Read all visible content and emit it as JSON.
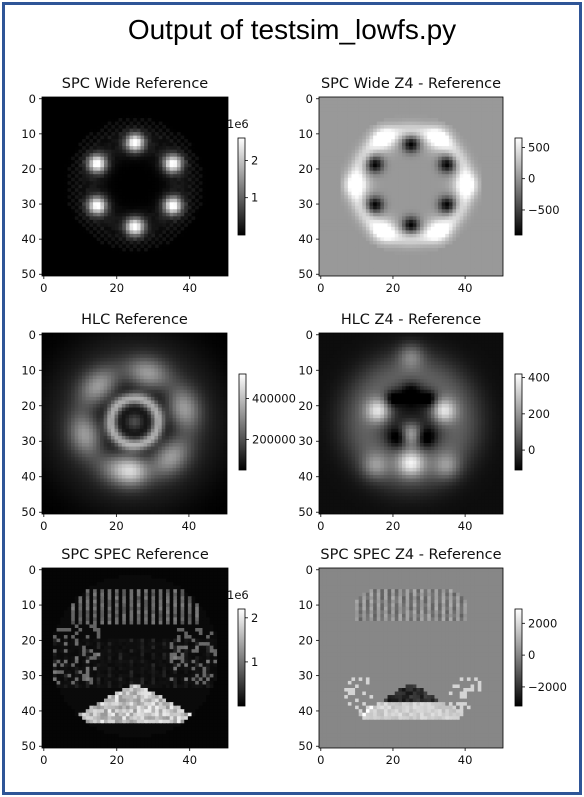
{
  "page": {
    "title": "Output of testsim_lowfs.py"
  },
  "colors": {
    "frame": "#2f5597"
  },
  "chart_data": [
    {
      "type": "heatmap",
      "title": "SPC Wide Reference",
      "pattern": "spc_wide_ref",
      "x_ticks": [
        "0",
        "20",
        "40"
      ],
      "y_ticks": [
        "0",
        "10",
        "20",
        "30",
        "40",
        "50"
      ],
      "xlim": [
        0,
        51
      ],
      "ylim": [
        51,
        0
      ],
      "grid": false,
      "colormap": "gray",
      "colorbar": {
        "ticks": [
          "1",
          "2"
        ],
        "offset_label": "1e6",
        "range": [
          0,
          2.6
        ]
      }
    },
    {
      "type": "heatmap",
      "title": "SPC Wide Z4 - Reference",
      "pattern": "spc_wide_diff",
      "x_ticks": [
        "0",
        "20",
        "40"
      ],
      "y_ticks": [
        "0",
        "10",
        "20",
        "30",
        "40",
        "50"
      ],
      "xlim": [
        0,
        51
      ],
      "ylim": [
        51,
        0
      ],
      "grid": false,
      "colormap": "gray",
      "colorbar": {
        "ticks": [
          "500",
          "0",
          "−500"
        ],
        "offset_label": "",
        "range": [
          -900,
          650
        ]
      }
    },
    {
      "type": "heatmap",
      "title": "HLC Reference",
      "pattern": "hlc_ref",
      "x_ticks": [
        "0",
        "20",
        "40"
      ],
      "y_ticks": [
        "0",
        "10",
        "20",
        "30",
        "40",
        "50"
      ],
      "xlim": [
        0,
        51
      ],
      "ylim": [
        51,
        0
      ],
      "grid": false,
      "colormap": "gray",
      "colorbar": {
        "ticks": [
          "400000",
          "200000"
        ],
        "offset_label": "",
        "range": [
          50000,
          520000
        ]
      }
    },
    {
      "type": "heatmap",
      "title": "HLC Z4 - Reference",
      "pattern": "hlc_diff",
      "x_ticks": [
        "0",
        "20",
        "40"
      ],
      "y_ticks": [
        "0",
        "10",
        "20",
        "30",
        "40",
        "50"
      ],
      "xlim": [
        0,
        51
      ],
      "ylim": [
        51,
        0
      ],
      "grid": false,
      "colormap": "gray",
      "colorbar": {
        "ticks": [
          "400",
          "200",
          "0"
        ],
        "offset_label": "",
        "range": [
          -110,
          420
        ]
      }
    },
    {
      "type": "heatmap",
      "title": "SPC SPEC Reference",
      "pattern": "spc_spec_ref",
      "x_ticks": [
        "0",
        "20",
        "40"
      ],
      "y_ticks": [
        "0",
        "10",
        "20",
        "30",
        "40",
        "50"
      ],
      "xlim": [
        0,
        51
      ],
      "ylim": [
        51,
        0
      ],
      "grid": false,
      "colormap": "gray",
      "colorbar": {
        "ticks": [
          "2",
          "1"
        ],
        "offset_label": "1e6",
        "range": [
          0,
          2.2
        ]
      }
    },
    {
      "type": "heatmap",
      "title": "SPC SPEC Z4 - Reference",
      "pattern": "spc_spec_diff",
      "x_ticks": [
        "0",
        "20",
        "40"
      ],
      "y_ticks": [
        "0",
        "10",
        "20",
        "30",
        "40",
        "50"
      ],
      "xlim": [
        0,
        51
      ],
      "ylim": [
        51,
        0
      ],
      "grid": false,
      "colormap": "gray",
      "colorbar": {
        "ticks": [
          "2000",
          "0",
          "−2000"
        ],
        "offset_label": "",
        "range": [
          -3200,
          2900
        ]
      }
    }
  ]
}
